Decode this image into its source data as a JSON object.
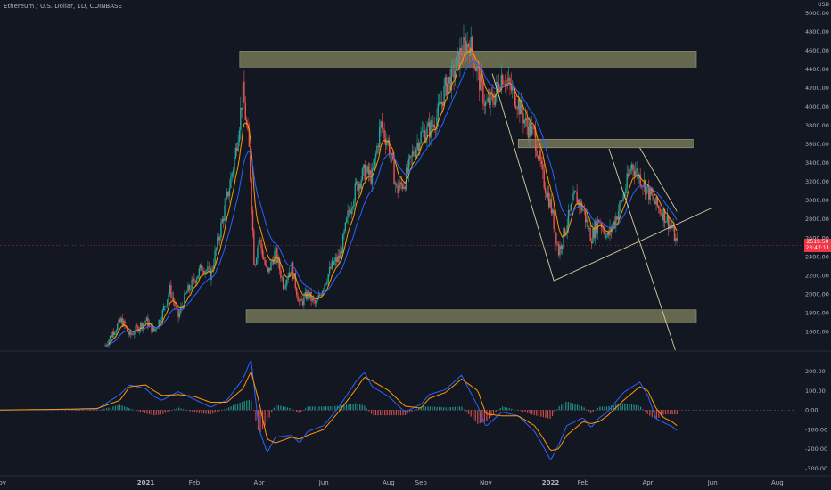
{
  "symbol_title": "Ethereum / U.S. Dollar, 1D, COINBASE",
  "axis_unit": "USD",
  "current_price_tag": {
    "value": "2519.50",
    "countdown": "23:47:11",
    "color": "#f23645"
  },
  "colors": {
    "background": "#131722",
    "candle_up": "#26a69a",
    "candle_down": "#ef5350",
    "ema_fast": "#ff9800",
    "ema_slow": "#2962ff",
    "zone_fill": "#7c7d5c",
    "trend_line": "#d6cfa0",
    "hist_up": "#26a69a",
    "hist_down": "#ef5350"
  },
  "chart_data": [
    {
      "type": "candlestick",
      "title": "Ethereum / U.S. Dollar, 1D, COINBASE",
      "ylabel": "USD",
      "ylim": [
        1400,
        5060
      ],
      "price_ticks": [
        "5000.00",
        "4800.00",
        "4600.00",
        "4400.00",
        "4200.00",
        "4000.00",
        "3800.00",
        "3600.00",
        "3400.00",
        "3200.00",
        "3000.00",
        "2800.00",
        "2600.00",
        "2400.00",
        "2200.00",
        "2000.00",
        "1800.00",
        "1600.00"
      ],
      "x_ticks": [
        "Nov",
        "2021",
        "Feb",
        "Apr",
        "Jun",
        "Aug",
        "Sep",
        "Nov",
        "2022",
        "Feb",
        "Apr",
        "Jun",
        "Aug"
      ],
      "x_tick_pos": [
        -2,
        2.5,
        4,
        6,
        8,
        10,
        11,
        13,
        15,
        16,
        18,
        20,
        22
      ],
      "x_range": [
        -2,
        22.5
      ],
      "close_path": [
        [
          1.25,
          1450
        ],
        [
          1.5,
          1600
        ],
        [
          1.75,
          1720
        ],
        [
          2.0,
          1550
        ],
        [
          2.25,
          1640
        ],
        [
          2.5,
          1720
        ],
        [
          2.75,
          1600
        ],
        [
          3.0,
          1780
        ],
        [
          3.25,
          2050
        ],
        [
          3.5,
          1750
        ],
        [
          3.75,
          2000
        ],
        [
          4.25,
          2300
        ],
        [
          4.5,
          2200
        ],
        [
          4.75,
          2600
        ],
        [
          5.0,
          3000
        ],
        [
          5.25,
          3450
        ],
        [
          5.5,
          4150
        ],
        [
          5.7,
          3500
        ],
        [
          5.85,
          2300
        ],
        [
          6.0,
          2600
        ],
        [
          6.25,
          2200
        ],
        [
          6.5,
          2450
        ],
        [
          6.75,
          2100
        ],
        [
          7.0,
          2300
        ],
        [
          7.25,
          1880
        ],
        [
          7.5,
          2000
        ],
        [
          7.75,
          1880
        ],
        [
          8.0,
          2100
        ],
        [
          8.25,
          2300
        ],
        [
          8.5,
          2400
        ],
        [
          8.75,
          2850
        ],
        [
          9.0,
          3150
        ],
        [
          9.25,
          3300
        ],
        [
          9.5,
          3250
        ],
        [
          9.75,
          3800
        ],
        [
          10.0,
          3600
        ],
        [
          10.25,
          3100
        ],
        [
          10.5,
          3200
        ],
        [
          10.75,
          3500
        ],
        [
          11.0,
          3700
        ],
        [
          11.25,
          3750
        ],
        [
          11.5,
          3900
        ],
        [
          11.75,
          4200
        ],
        [
          12.0,
          4350
        ],
        [
          12.25,
          4600
        ],
        [
          12.5,
          4680
        ],
        [
          12.75,
          4350
        ],
        [
          13.0,
          4000
        ],
        [
          13.25,
          4100
        ],
        [
          13.5,
          4350
        ],
        [
          13.75,
          4200
        ],
        [
          14.0,
          4050
        ],
        [
          14.25,
          3800
        ],
        [
          14.5,
          3700
        ],
        [
          14.75,
          3250
        ],
        [
          15.0,
          2950
        ],
        [
          15.25,
          2450
        ],
        [
          15.5,
          2750
        ],
        [
          15.75,
          3050
        ],
        [
          16.0,
          2900
        ],
        [
          16.25,
          2600
        ],
        [
          16.5,
          2800
        ],
        [
          16.75,
          2600
        ],
        [
          17.0,
          2800
        ],
        [
          17.25,
          3050
        ],
        [
          17.5,
          3380
        ],
        [
          17.75,
          3250
        ],
        [
          18.0,
          3100
        ],
        [
          18.25,
          2950
        ],
        [
          18.5,
          2850
        ],
        [
          18.75,
          2700
        ],
        [
          18.9,
          2519.5
        ]
      ],
      "zones": [
        {
          "from_x": 5.4,
          "to_x": 19.5,
          "from_y": 4420,
          "to_y": 4590
        },
        {
          "from_x": 14.0,
          "to_x": 19.4,
          "from_y": 3560,
          "to_y": 3650
        },
        {
          "from_x": 5.6,
          "to_x": 19.5,
          "from_y": 1690,
          "to_y": 1830
        }
      ],
      "trend_lines": [
        {
          "from": [
            13.2,
            4350
          ],
          "to": [
            15.1,
            2140
          ]
        },
        {
          "from": [
            15.1,
            2140
          ],
          "to": [
            20.0,
            2920
          ]
        },
        {
          "from": [
            16.8,
            3550
          ],
          "to": [
            18.85,
            1400
          ]
        },
        {
          "from": [
            17.75,
            3560
          ],
          "to": [
            18.9,
            2880
          ]
        }
      ],
      "current_price": 2519.5
    },
    {
      "type": "macd",
      "ylim": [
        -330,
        300
      ],
      "y_ticks": [
        "200.00",
        "100.00",
        "0.00",
        "-100.00",
        "-200.00",
        "-300.00"
      ],
      "macd_line": [
        [
          -2,
          0
        ],
        [
          0,
          3
        ],
        [
          1,
          5
        ],
        [
          1.7,
          80
        ],
        [
          2,
          130
        ],
        [
          2.5,
          110
        ],
        [
          2.75,
          70
        ],
        [
          3,
          50
        ],
        [
          3.5,
          95
        ],
        [
          4,
          55
        ],
        [
          4.5,
          15
        ],
        [
          5,
          50
        ],
        [
          5.5,
          160
        ],
        [
          5.75,
          260
        ],
        [
          6,
          -100
        ],
        [
          6.25,
          -220
        ],
        [
          6.5,
          -140
        ],
        [
          7,
          -130
        ],
        [
          7.25,
          -170
        ],
        [
          7.5,
          -110
        ],
        [
          8,
          -80
        ],
        [
          8.5,
          25
        ],
        [
          9,
          150
        ],
        [
          9.25,
          195
        ],
        [
          9.5,
          120
        ],
        [
          10,
          70
        ],
        [
          10.25,
          30
        ],
        [
          10.5,
          -10
        ],
        [
          11,
          30
        ],
        [
          11.25,
          80
        ],
        [
          11.75,
          105
        ],
        [
          12.25,
          180
        ],
        [
          12.75,
          20
        ],
        [
          13,
          -85
        ],
        [
          13.5,
          -10
        ],
        [
          14,
          -30
        ],
        [
          14.5,
          -110
        ],
        [
          14.75,
          -180
        ],
        [
          15,
          -260
        ],
        [
          15.25,
          -180
        ],
        [
          15.5,
          -80
        ],
        [
          16,
          -40
        ],
        [
          16.25,
          -90
        ],
        [
          16.5,
          -40
        ],
        [
          16.75,
          -10
        ],
        [
          17.25,
          90
        ],
        [
          17.75,
          145
        ],
        [
          18,
          75
        ],
        [
          18.25,
          -45
        ],
        [
          18.5,
          -65
        ],
        [
          18.75,
          -85
        ],
        [
          18.9,
          -105
        ]
      ],
      "signal_line": [
        [
          -2,
          0
        ],
        [
          0,
          4
        ],
        [
          1,
          8
        ],
        [
          1.7,
          50
        ],
        [
          2,
          120
        ],
        [
          2.5,
          130
        ],
        [
          2.75,
          100
        ],
        [
          3,
          75
        ],
        [
          3.5,
          80
        ],
        [
          4,
          70
        ],
        [
          4.5,
          40
        ],
        [
          5,
          40
        ],
        [
          5.5,
          110
        ],
        [
          5.75,
          200
        ],
        [
          6,
          40
        ],
        [
          6.25,
          -150
        ],
        [
          6.5,
          -170
        ],
        [
          7,
          -140
        ],
        [
          7.25,
          -150
        ],
        [
          7.5,
          -130
        ],
        [
          8,
          -100
        ],
        [
          8.5,
          0
        ],
        [
          9,
          110
        ],
        [
          9.25,
          170
        ],
        [
          9.5,
          150
        ],
        [
          10,
          100
        ],
        [
          10.25,
          60
        ],
        [
          10.5,
          20
        ],
        [
          11,
          10
        ],
        [
          11.25,
          60
        ],
        [
          11.75,
          90
        ],
        [
          12.25,
          160
        ],
        [
          12.75,
          100
        ],
        [
          13,
          -20
        ],
        [
          13.5,
          -30
        ],
        [
          14,
          -30
        ],
        [
          14.5,
          -80
        ],
        [
          14.75,
          -140
        ],
        [
          15,
          -210
        ],
        [
          15.25,
          -200
        ],
        [
          15.5,
          -130
        ],
        [
          16,
          -60
        ],
        [
          16.25,
          -70
        ],
        [
          16.5,
          -60
        ],
        [
          16.75,
          -30
        ],
        [
          17.25,
          50
        ],
        [
          17.75,
          120
        ],
        [
          18,
          100
        ],
        [
          18.25,
          10
        ],
        [
          18.5,
          -40
        ],
        [
          18.75,
          -60
        ],
        [
          18.9,
          -80
        ]
      ]
    }
  ]
}
